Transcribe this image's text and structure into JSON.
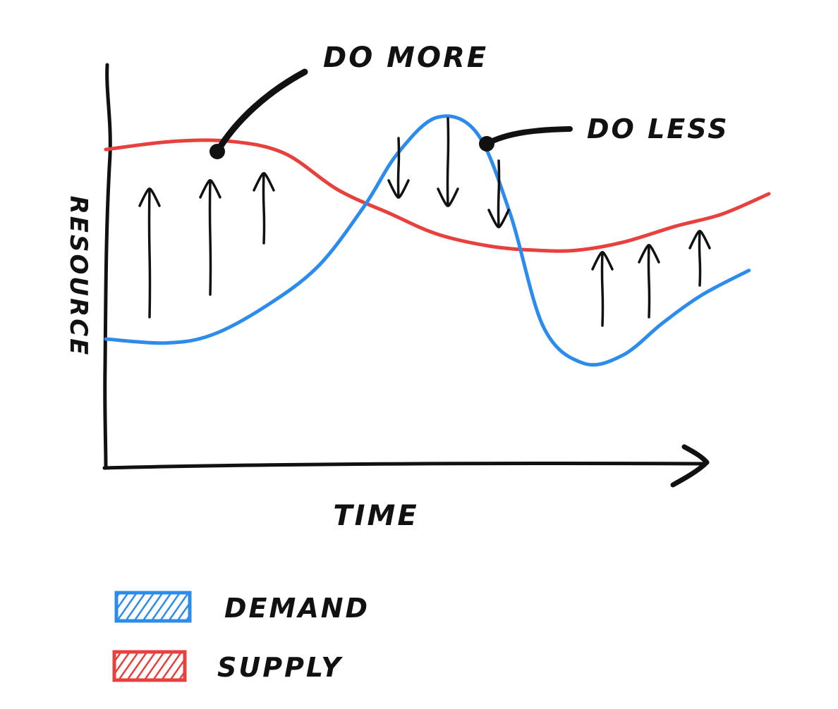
{
  "chart_data": {
    "type": "line",
    "title": "",
    "xlabel": "TIME",
    "ylabel": "RESOURCE",
    "xlim": [
      0,
      10
    ],
    "ylim": [
      0,
      10
    ],
    "grid": false,
    "legend_position": "bottom-left",
    "series": [
      {
        "name": "DEMAND",
        "color": "#2b8cee",
        "x": [
          0,
          0.9,
          1.6,
          2.4,
          3.2,
          3.9,
          4.4,
          5.0,
          5.6,
          6.1,
          6.6,
          7.2,
          7.8,
          8.4,
          9.0,
          9.7
        ],
        "y": [
          3.2,
          3.1,
          3.3,
          4.0,
          5.0,
          6.5,
          7.8,
          8.7,
          8.3,
          6.3,
          3.5,
          2.6,
          2.8,
          3.6,
          4.3,
          4.9
        ]
      },
      {
        "name": "SUPPLY",
        "color": "#e8403c",
        "x": [
          0,
          1.0,
          1.9,
          2.7,
          3.5,
          4.3,
          5.0,
          5.8,
          6.5,
          7.1,
          7.8,
          8.6,
          9.3,
          10.0
        ],
        "y": [
          7.9,
          8.1,
          8.1,
          7.8,
          6.9,
          6.3,
          5.8,
          5.5,
          5.4,
          5.4,
          5.6,
          6.0,
          6.3,
          6.8
        ]
      }
    ],
    "annotations": [
      {
        "text": "DO MORE",
        "x": 1.8,
        "y": 7.6
      },
      {
        "text": "DO LESS",
        "x": 6.0,
        "y": 7.9
      }
    ],
    "regions": [
      {
        "direction": "up",
        "x_range": [
          0,
          3.8
        ]
      },
      {
        "direction": "down",
        "x_range": [
          4.4,
          6.3
        ]
      },
      {
        "direction": "up",
        "x_range": [
          7.4,
          9.3
        ]
      }
    ]
  }
}
